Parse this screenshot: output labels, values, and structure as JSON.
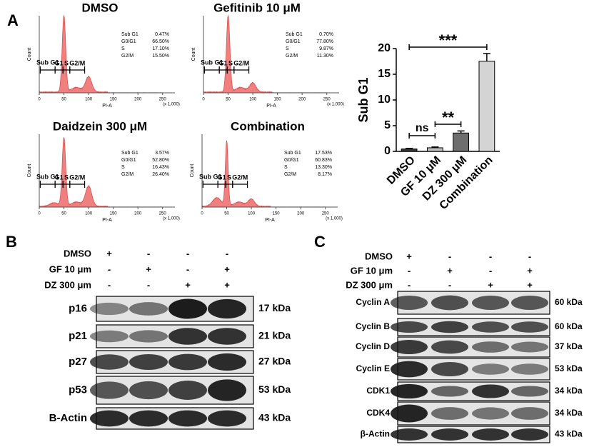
{
  "panel_labels": [
    "A",
    "B",
    "C"
  ],
  "flow": {
    "xlim": [
      0,
      275
    ],
    "xticks": [
      0,
      50,
      100,
      150,
      200,
      250
    ],
    "xlabel": "PI-A",
    "xunit": "(x 1,000)",
    "ylabel": "Count",
    "gates": [
      "Sub G1",
      "G1",
      "S",
      "G2/M"
    ],
    "panels": [
      {
        "title": "DMSO",
        "stats": [
          {
            "name": "Sub G1",
            "value": "0.47%"
          },
          {
            "name": "G0/G1",
            "value": "66.50%"
          },
          {
            "name": "S",
            "value": "17.10%"
          },
          {
            "name": "G2/M",
            "value": "15.50%"
          }
        ]
      },
      {
        "title": "Gefitinib 10 μM",
        "stats": [
          {
            "name": "Sub G1",
            "value": "0.70%"
          },
          {
            "name": "G0/G1",
            "value": "77.80%"
          },
          {
            "name": "S",
            "value": "9.87%"
          },
          {
            "name": "G2/M",
            "value": "11.30%"
          }
        ]
      },
      {
        "title": "Daidzein 300 μM",
        "stats": [
          {
            "name": "Sub G1",
            "value": "3.57%"
          },
          {
            "name": "G0/G1",
            "value": "52.80%"
          },
          {
            "name": "S",
            "value": "16.43%"
          },
          {
            "name": "G2/M",
            "value": "26.40%"
          }
        ]
      },
      {
        "title": "Combination",
        "stats": [
          {
            "name": "Sub G1",
            "value": "17.53%"
          },
          {
            "name": "G0/G1",
            "value": "60.83%"
          },
          {
            "name": "S",
            "value": "13.30%"
          },
          {
            "name": "G2/M",
            "value": "8.17%"
          }
        ]
      }
    ]
  },
  "chart_data": {
    "type": "bar",
    "ylabel": "Sub G1",
    "categories": [
      "DMSO",
      "GF 10 μM",
      "DZ 300 μM",
      "Combination"
    ],
    "values": [
      0.47,
      0.7,
      3.57,
      17.53
    ],
    "errors": [
      0.1,
      0.15,
      0.4,
      1.5
    ],
    "colors": [
      "#3a3a3a",
      "#bdbdbd",
      "#6e6e6e",
      "#d4d4d4"
    ],
    "ylim": [
      0,
      20
    ],
    "yticks": [
      0,
      5,
      10,
      15,
      20
    ],
    "annotations": [
      {
        "text": "ns",
        "from": 0,
        "to": 1
      },
      {
        "text": "**",
        "from": 1,
        "to": 2
      },
      {
        "text": "***",
        "from": 0,
        "to": 3
      }
    ]
  },
  "blot_b": {
    "treatments": [
      {
        "name": "DMSO",
        "signs": [
          "+",
          "-",
          "-",
          "-"
        ]
      },
      {
        "name": "GF 10 μm",
        "signs": [
          "-",
          "+",
          "-",
          "+"
        ]
      },
      {
        "name": "DZ 300 μm",
        "signs": [
          "-",
          "-",
          "+",
          "+"
        ]
      }
    ],
    "proteins": [
      {
        "name": "p16",
        "size": "17 kDa"
      },
      {
        "name": "p21",
        "size": "21 kDa"
      },
      {
        "name": "p27",
        "size": "27 kDa"
      },
      {
        "name": "p53",
        "size": "53 kDa"
      },
      {
        "name": "B-Actin",
        "size": "43 kDa"
      }
    ]
  },
  "blot_c": {
    "treatments": [
      {
        "name": "DMSO",
        "signs": [
          "+",
          "-",
          "-",
          "-"
        ]
      },
      {
        "name": "GF 10 μm",
        "signs": [
          "-",
          "+",
          "-",
          "+"
        ]
      },
      {
        "name": "DZ 300 μm",
        "signs": [
          "-",
          "-",
          "+",
          "+"
        ]
      }
    ],
    "proteins": [
      {
        "name": "Cyclin A",
        "size": "60 kDa"
      },
      {
        "name": "Cyclin B",
        "size": "60 kDa"
      },
      {
        "name": "Cyclin D",
        "size": "37 kDa"
      },
      {
        "name": "Cyclin E",
        "size": "53 kDa"
      },
      {
        "name": "CDK1",
        "size": "34 kDa"
      },
      {
        "name": "CDK4",
        "size": "34 kDa"
      },
      {
        "name": "β-Actin",
        "size": "43 kDa"
      }
    ]
  }
}
